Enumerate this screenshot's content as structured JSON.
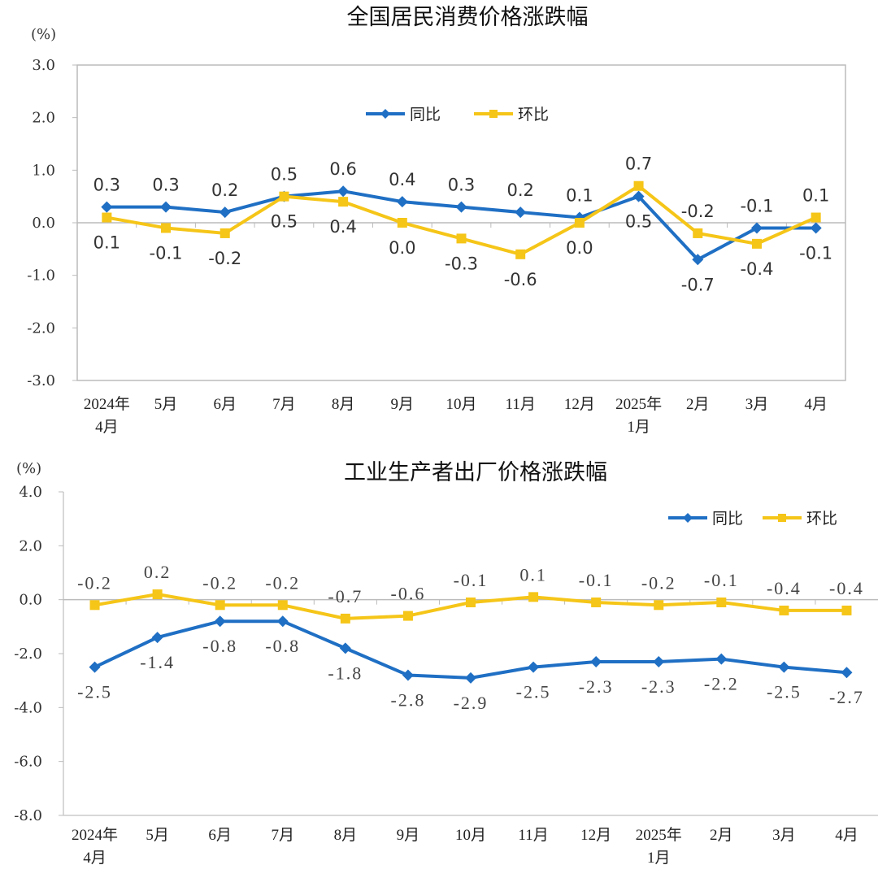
{
  "chart_data": [
    {
      "type": "line",
      "title": "全国居民消费价格涨跌幅",
      "unit": "(%)",
      "categories": [
        [
          "2024年",
          "4月"
        ],
        [
          "5月"
        ],
        [
          "6月"
        ],
        [
          "7月"
        ],
        [
          "8月"
        ],
        [
          "9月"
        ],
        [
          "10月"
        ],
        [
          "11月"
        ],
        [
          "12月"
        ],
        [
          "2025年",
          "1月"
        ],
        [
          "2月"
        ],
        [
          "3月"
        ],
        [
          "4月"
        ]
      ],
      "ylim": [
        -3,
        3
      ],
      "yticks": [
        "3.0",
        "2.0",
        "1.0",
        "0.0",
        "-1.0",
        "-2.0",
        "-3.0"
      ],
      "legend": "top-center",
      "grid": false,
      "series": [
        {
          "name": "同比",
          "color": "#1f6fc4",
          "marker": "diamond",
          "values": [
            0.3,
            0.3,
            0.2,
            0.5,
            0.6,
            0.4,
            0.3,
            0.2,
            0.1,
            0.5,
            -0.7,
            -0.1,
            -0.1
          ],
          "labels": [
            "0.3",
            "0.3",
            "0.2",
            "0.5",
            "0.6",
            "0.4",
            "0.3",
            "0.2",
            "0.1",
            "0.5",
            "-0.7",
            "-0.1",
            "-0.1"
          ]
        },
        {
          "name": "环比",
          "color": "#f5c518",
          "marker": "square",
          "values": [
            0.1,
            -0.1,
            -0.2,
            0.5,
            0.4,
            0.0,
            -0.3,
            -0.6,
            0.0,
            0.7,
            -0.2,
            -0.4,
            0.1
          ],
          "labels": [
            "0.1",
            "-0.1",
            "-0.2",
            "0.5",
            "0.4",
            "0.0",
            "-0.3",
            "-0.6",
            "0.0",
            "0.7",
            "-0.2",
            "-0.4",
            "0.1"
          ]
        }
      ]
    },
    {
      "type": "line",
      "title": "工业生产者出厂价格涨跌幅",
      "unit": "(%)",
      "categories": [
        [
          "2024年",
          "4月"
        ],
        [
          "5月"
        ],
        [
          "6月"
        ],
        [
          "7月"
        ],
        [
          "8月"
        ],
        [
          "9月"
        ],
        [
          "10月"
        ],
        [
          "11月"
        ],
        [
          "12月"
        ],
        [
          "2025年",
          "1月"
        ],
        [
          "2月"
        ],
        [
          "3月"
        ],
        [
          "4月"
        ]
      ],
      "ylim": [
        -8,
        4
      ],
      "yticks": [
        "4.0",
        "2.0",
        "0.0",
        "-2.0",
        "-4.0",
        "-6.0",
        "-8.0"
      ],
      "legend": "top-right",
      "grid": false,
      "series": [
        {
          "name": "同比",
          "color": "#1f6fc4",
          "marker": "diamond",
          "values": [
            -2.5,
            -1.4,
            -0.8,
            -0.8,
            -1.8,
            -2.8,
            -2.9,
            -2.5,
            -2.3,
            -2.3,
            -2.2,
            -2.5,
            -2.7
          ],
          "labels": [
            "-2.5",
            "-1.4",
            "-0.8",
            "-0.8",
            "-1.8",
            "-2.8",
            "-2.9",
            "-2.5",
            "-2.3",
            "-2.3",
            "-2.2",
            "-2.5",
            "-2.7"
          ]
        },
        {
          "name": "环比",
          "color": "#f5c518",
          "marker": "square",
          "values": [
            -0.2,
            0.2,
            -0.2,
            -0.2,
            -0.7,
            -0.6,
            -0.1,
            0.1,
            -0.1,
            -0.2,
            -0.1,
            -0.4,
            -0.4
          ],
          "labels": [
            "-0.2",
            "0.2",
            "-0.2",
            "-0.2",
            "-0.7",
            "-0.6",
            "-0.1",
            "0.1",
            "-0.1",
            "-0.2",
            "-0.1",
            "-0.4",
            "-0.4"
          ]
        }
      ]
    }
  ]
}
